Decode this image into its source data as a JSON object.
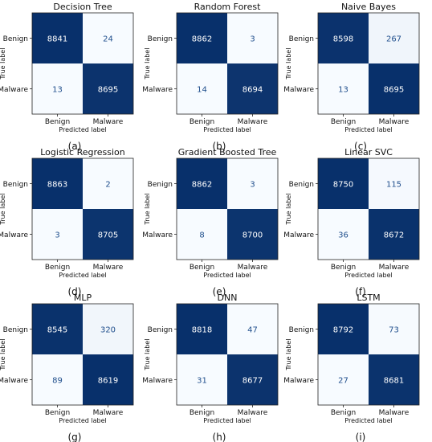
{
  "chart_data": [
    {
      "type": "heatmap",
      "title": "Decision Tree",
      "panel_label": "(a)",
      "row_labels": [
        "Benign",
        "Malware"
      ],
      "col_labels": [
        "Benign",
        "Malware"
      ],
      "xlabel": "Predicted label",
      "ylabel": "True label",
      "values": [
        [
          8841,
          24
        ],
        [
          13,
          8695
        ]
      ]
    },
    {
      "type": "heatmap",
      "title": "Random Forest",
      "panel_label": "(b)",
      "row_labels": [
        "Benign",
        "Malware"
      ],
      "col_labels": [
        "Benign",
        "Malware"
      ],
      "xlabel": "Predicted label",
      "ylabel": "True label",
      "values": [
        [
          8862,
          3
        ],
        [
          14,
          8694
        ]
      ]
    },
    {
      "type": "heatmap",
      "title": "Naive Bayes",
      "panel_label": "(c)",
      "row_labels": [
        "Benign",
        "Malware"
      ],
      "col_labels": [
        "Benign",
        "Malware"
      ],
      "xlabel": "Predicted label",
      "ylabel": "True label",
      "values": [
        [
          8598,
          267
        ],
        [
          13,
          8695
        ]
      ]
    },
    {
      "type": "heatmap",
      "title": "Logistic Regression",
      "panel_label": "(d)",
      "row_labels": [
        "Benign",
        "Malware"
      ],
      "col_labels": [
        "Benign",
        "Malware"
      ],
      "xlabel": "Predicted label",
      "ylabel": "True label",
      "values": [
        [
          8863,
          2
        ],
        [
          3,
          8705
        ]
      ]
    },
    {
      "type": "heatmap",
      "title": "Gradient Boosted Tree",
      "panel_label": "(e)",
      "row_labels": [
        "Benign",
        "Malware"
      ],
      "col_labels": [
        "Benign",
        "Malware"
      ],
      "xlabel": "Predicted label",
      "ylabel": "True label",
      "values": [
        [
          8862,
          3
        ],
        [
          8,
          8700
        ]
      ]
    },
    {
      "type": "heatmap",
      "title": "Linear SVC",
      "panel_label": "(f)",
      "row_labels": [
        "Benign",
        "Malware"
      ],
      "col_labels": [
        "Benign",
        "Malware"
      ],
      "xlabel": "Predicted label",
      "ylabel": "True label",
      "values": [
        [
          8750,
          115
        ],
        [
          36,
          8672
        ]
      ]
    },
    {
      "type": "heatmap",
      "title": "MLP",
      "panel_label": "(g)",
      "row_labels": [
        "Benign",
        "Malware"
      ],
      "col_labels": [
        "Benign",
        "Malware"
      ],
      "xlabel": "Predicted label",
      "ylabel": "True label",
      "values": [
        [
          8545,
          320
        ],
        [
          89,
          8619
        ]
      ]
    },
    {
      "type": "heatmap",
      "title": "DNN",
      "panel_label": "(h)",
      "row_labels": [
        "Benign",
        "Malware"
      ],
      "col_labels": [
        "Benign",
        "Malware"
      ],
      "xlabel": "Predicted label",
      "ylabel": "True label",
      "values": [
        [
          8818,
          47
        ],
        [
          31,
          8677
        ]
      ]
    },
    {
      "type": "heatmap",
      "title": "LSTM",
      "panel_label": "(i)",
      "row_labels": [
        "Benign",
        "Malware"
      ],
      "col_labels": [
        "Benign",
        "Malware"
      ],
      "xlabel": "Predicted label",
      "ylabel": "True label",
      "values": [
        [
          8792,
          73
        ],
        [
          27,
          8681
        ]
      ]
    }
  ],
  "colors": {
    "high": "#08306b",
    "low": "#f7fbff",
    "low_text": "#1f4e8c",
    "high_text": "#ffffff"
  }
}
